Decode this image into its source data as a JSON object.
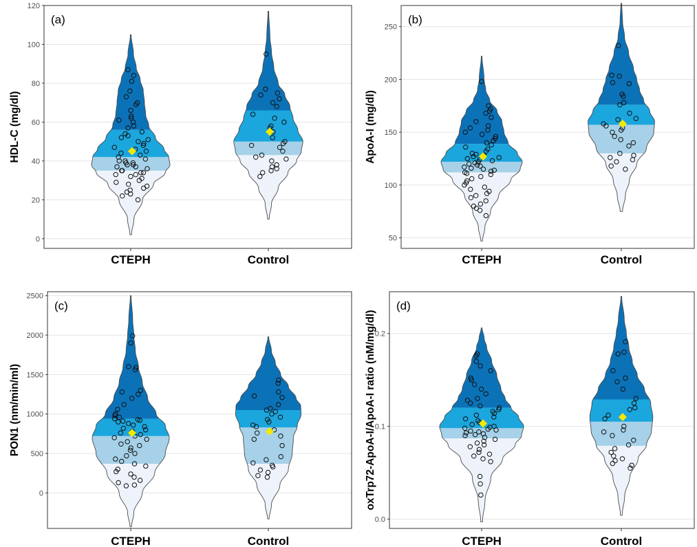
{
  "chart_data": [
    {
      "type": "violin",
      "panel_label": "(a)",
      "ylabel": "HDL-C (mg/dl)",
      "categories": [
        "CTEPH",
        "Control"
      ],
      "ylim": [
        -5,
        120
      ],
      "yticks": [
        0,
        20,
        40,
        60,
        80,
        100,
        120
      ],
      "colors": {
        "q1": "#eef3fb",
        "q2": "#a6d1e8",
        "q3": "#1ba6de",
        "q4": "#0b72b8"
      },
      "mean_color": "#f4e800",
      "groups": [
        {
          "name": "CTEPH",
          "range": [
            2,
            105
          ],
          "quartiles": [
            35,
            42,
            56
          ],
          "mean": 45,
          "density": [
            [
              2,
              0.02
            ],
            [
              10,
              0.08
            ],
            [
              20,
              0.3
            ],
            [
              28,
              0.58
            ],
            [
              34,
              0.88
            ],
            [
              38,
              1.0
            ],
            [
              42,
              0.97
            ],
            [
              46,
              0.85
            ],
            [
              52,
              0.63
            ],
            [
              58,
              0.46
            ],
            [
              64,
              0.38
            ],
            [
              70,
              0.35
            ],
            [
              76,
              0.32
            ],
            [
              82,
              0.24
            ],
            [
              88,
              0.14
            ],
            [
              95,
              0.07
            ],
            [
              105,
              0.01
            ]
          ],
          "points": [
            87,
            84,
            81,
            76,
            73,
            70,
            69,
            66,
            63,
            62,
            61,
            60,
            58,
            57,
            55,
            54,
            53,
            52,
            51,
            50,
            49,
            48,
            47,
            46,
            45,
            44,
            43,
            42,
            41,
            40,
            40,
            39,
            39,
            38,
            38,
            37,
            37,
            36,
            35,
            35,
            34,
            34,
            33,
            33,
            32,
            31,
            30,
            29,
            28,
            27,
            26,
            25,
            24,
            23,
            22,
            20
          ]
        },
        {
          "name": "Control",
          "range": [
            10,
            117
          ],
          "quartiles": [
            43,
            50,
            66
          ],
          "mean": 55,
          "density": [
            [
              10,
              0.02
            ],
            [
              18,
              0.08
            ],
            [
              26,
              0.25
            ],
            [
              34,
              0.5
            ],
            [
              40,
              0.72
            ],
            [
              45,
              0.84
            ],
            [
              50,
              0.88
            ],
            [
              56,
              0.75
            ],
            [
              62,
              0.63
            ],
            [
              68,
              0.55
            ],
            [
              74,
              0.42
            ],
            [
              80,
              0.25
            ],
            [
              88,
              0.14
            ],
            [
              96,
              0.08
            ],
            [
              104,
              0.04
            ],
            [
              117,
              0.01
            ]
          ],
          "points": [
            95,
            77,
            75,
            74,
            72,
            70,
            68,
            64,
            62,
            60,
            58,
            57,
            55,
            52,
            50,
            49,
            48,
            47,
            45,
            43,
            42,
            41,
            40,
            38,
            37,
            36,
            35,
            34,
            32
          ]
        }
      ]
    },
    {
      "type": "violin",
      "panel_label": "(b)",
      "ylabel": "ApoA-I (mg/dl)",
      "categories": [
        "CTEPH",
        "Control"
      ],
      "ylim": [
        40,
        270
      ],
      "yticks": [
        50,
        100,
        150,
        200,
        250
      ],
      "colors": {
        "q1": "#eef3fb",
        "q2": "#a6d1e8",
        "q3": "#1ba6de",
        "q4": "#0b72b8"
      },
      "mean_color": "#f4e800",
      "groups": [
        {
          "name": "CTEPH",
          "range": [
            47,
            222
          ],
          "quartiles": [
            112,
            122,
            139
          ],
          "mean": 127,
          "density": [
            [
              47,
              0.02
            ],
            [
              60,
              0.08
            ],
            [
              75,
              0.22
            ],
            [
              90,
              0.42
            ],
            [
              105,
              0.72
            ],
            [
              115,
              0.95
            ],
            [
              122,
              1.0
            ],
            [
              130,
              0.88
            ],
            [
              140,
              0.65
            ],
            [
              150,
              0.55
            ],
            [
              160,
              0.5
            ],
            [
              170,
              0.38
            ],
            [
              180,
              0.2
            ],
            [
              190,
              0.1
            ],
            [
              200,
              0.06
            ],
            [
              222,
              0.01
            ]
          ],
          "points": [
            198,
            175,
            172,
            170,
            168,
            164,
            160,
            156,
            154,
            152,
            150,
            148,
            146,
            144,
            142,
            140,
            138,
            136,
            134,
            132,
            130,
            129,
            128,
            127,
            126,
            125,
            124,
            123,
            122,
            121,
            120,
            119,
            118,
            117,
            116,
            115,
            114,
            113,
            112,
            111,
            110,
            108,
            106,
            104,
            102,
            100,
            98,
            96,
            94,
            92,
            90,
            88,
            85,
            82,
            80,
            78,
            76,
            71
          ]
        },
        {
          "name": "Control",
          "range": [
            75,
            272
          ],
          "quartiles": [
            130,
            157,
            176
          ],
          "mean": 158,
          "density": [
            [
              75,
              0.03
            ],
            [
              90,
              0.1
            ],
            [
              105,
              0.2
            ],
            [
              120,
              0.38
            ],
            [
              135,
              0.62
            ],
            [
              150,
              0.8
            ],
            [
              160,
              0.82
            ],
            [
              170,
              0.7
            ],
            [
              180,
              0.55
            ],
            [
              190,
              0.45
            ],
            [
              200,
              0.38
            ],
            [
              210,
              0.3
            ],
            [
              225,
              0.18
            ],
            [
              240,
              0.08
            ],
            [
              255,
              0.03
            ],
            [
              272,
              0.01
            ]
          ],
          "points": [
            232,
            204,
            203,
            197,
            196,
            186,
            184,
            178,
            176,
            168,
            163,
            162,
            158,
            156,
            154,
            152,
            150,
            146,
            143,
            140,
            137,
            130,
            128,
            126,
            124,
            122,
            118,
            115
          ]
        }
      ]
    },
    {
      "type": "violin",
      "panel_label": "(c)",
      "ylabel": "PON1 (nm/min/ml)",
      "categories": [
        "CTEPH",
        "Control"
      ],
      "ylim": [
        -450,
        2550
      ],
      "yticks": [
        0,
        500,
        1000,
        1500,
        2000,
        2500
      ],
      "colors": {
        "q1": "#eef3fb",
        "q2": "#a6d1e8",
        "q3": "#1ba6de",
        "q4": "#0b72b8"
      },
      "mean_color": "#f4e800",
      "groups": [
        {
          "name": "CTEPH",
          "range": [
            -430,
            2500
          ],
          "quartiles": [
            370,
            720,
            940
          ],
          "mean": 760,
          "density": [
            [
              -430,
              0.02
            ],
            [
              -250,
              0.08
            ],
            [
              0,
              0.3
            ],
            [
              250,
              0.62
            ],
            [
              500,
              0.9
            ],
            [
              700,
              1.0
            ],
            [
              850,
              0.9
            ],
            [
              1000,
              0.66
            ],
            [
              1200,
              0.44
            ],
            [
              1400,
              0.3
            ],
            [
              1600,
              0.2
            ],
            [
              1800,
              0.12
            ],
            [
              2000,
              0.08
            ],
            [
              2200,
              0.05
            ],
            [
              2500,
              0.01
            ]
          ],
          "points": [
            1990,
            1900,
            1600,
            1590,
            1560,
            1300,
            1280,
            1250,
            1200,
            1120,
            1060,
            1000,
            980,
            960,
            940,
            930,
            920,
            910,
            900,
            880,
            860,
            840,
            820,
            800,
            780,
            760,
            740,
            720,
            700,
            680,
            650,
            620,
            600,
            570,
            540,
            500,
            470,
            430,
            400,
            370,
            340,
            300,
            270,
            240,
            200,
            160,
            130,
            100,
            90
          ]
        },
        {
          "name": "Control",
          "range": [
            -330,
            1980
          ],
          "quartiles": [
            370,
            830,
            1050
          ],
          "mean": 780,
          "density": [
            [
              -330,
              0.02
            ],
            [
              -150,
              0.08
            ],
            [
              100,
              0.3
            ],
            [
              300,
              0.52
            ],
            [
              500,
              0.62
            ],
            [
              700,
              0.65
            ],
            [
              850,
              0.75
            ],
            [
              1000,
              0.85
            ],
            [
              1100,
              0.84
            ],
            [
              1200,
              0.72
            ],
            [
              1350,
              0.52
            ],
            [
              1500,
              0.32
            ],
            [
              1650,
              0.18
            ],
            [
              1800,
              0.08
            ],
            [
              1980,
              0.01
            ]
          ],
          "points": [
            1430,
            1390,
            1280,
            1230,
            1210,
            1120,
            1070,
            1050,
            1030,
            1000,
            960,
            930,
            900,
            860,
            840,
            800,
            760,
            720,
            680,
            600,
            460,
            420,
            380,
            350,
            330,
            290,
            260,
            220,
            200
          ]
        }
      ]
    },
    {
      "type": "violin",
      "panel_label": "(d)",
      "ylabel": "oxTrp72-ApoA-I/ApoA-I ratio (nM/mg/dl)",
      "categories": [
        "CTEPH",
        "Control"
      ],
      "ylim": [
        -0.01,
        0.245
      ],
      "yticks": [
        0.0,
        0.1,
        0.2
      ],
      "colors": {
        "q1": "#eef3fb",
        "q2": "#a6d1e8",
        "q3": "#1ba6de",
        "q4": "#0b72b8"
      },
      "mean_color": "#f4e800",
      "groups": [
        {
          "name": "CTEPH",
          "range": [
            -0.003,
            0.206
          ],
          "quartiles": [
            0.087,
            0.098,
            0.12
          ],
          "mean": 0.103,
          "density": [
            [
              -0.003,
              0.02
            ],
            [
              0.02,
              0.08
            ],
            [
              0.045,
              0.22
            ],
            [
              0.065,
              0.5
            ],
            [
              0.08,
              0.8
            ],
            [
              0.09,
              0.95
            ],
            [
              0.1,
              1.0
            ],
            [
              0.11,
              0.88
            ],
            [
              0.12,
              0.7
            ],
            [
              0.13,
              0.56
            ],
            [
              0.14,
              0.46
            ],
            [
              0.155,
              0.36
            ],
            [
              0.17,
              0.24
            ],
            [
              0.185,
              0.12
            ],
            [
              0.195,
              0.06
            ],
            [
              0.206,
              0.01
            ]
          ],
          "points": [
            0.178,
            0.176,
            0.17,
            0.165,
            0.16,
            0.152,
            0.15,
            0.145,
            0.14,
            0.135,
            0.13,
            0.128,
            0.125,
            0.122,
            0.12,
            0.118,
            0.116,
            0.114,
            0.112,
            0.11,
            0.108,
            0.106,
            0.104,
            0.102,
            0.1,
            0.099,
            0.098,
            0.097,
            0.096,
            0.095,
            0.094,
            0.093,
            0.092,
            0.091,
            0.09,
            0.088,
            0.086,
            0.084,
            0.082,
            0.08,
            0.078,
            0.075,
            0.072,
            0.07,
            0.068,
            0.065,
            0.062,
            0.046,
            0.038,
            0.026
          ]
        },
        {
          "name": "Control",
          "range": [
            0.004,
            0.24
          ],
          "quartiles": [
            0.079,
            0.105,
            0.129
          ],
          "mean": 0.11,
          "density": [
            [
              0.004,
              0.02
            ],
            [
              0.025,
              0.08
            ],
            [
              0.045,
              0.2
            ],
            [
              0.065,
              0.4
            ],
            [
              0.08,
              0.6
            ],
            [
              0.095,
              0.72
            ],
            [
              0.11,
              0.75
            ],
            [
              0.125,
              0.7
            ],
            [
              0.14,
              0.55
            ],
            [
              0.155,
              0.38
            ],
            [
              0.17,
              0.26
            ],
            [
              0.185,
              0.18
            ],
            [
              0.2,
              0.12
            ],
            [
              0.215,
              0.07
            ],
            [
              0.24,
              0.01
            ]
          ],
          "points": [
            0.191,
            0.18,
            0.178,
            0.16,
            0.152,
            0.148,
            0.14,
            0.13,
            0.125,
            0.12,
            0.118,
            0.112,
            0.108,
            0.1,
            0.096,
            0.094,
            0.09,
            0.085,
            0.08,
            0.076,
            0.072,
            0.068,
            0.065,
            0.063,
            0.06,
            0.058,
            0.055
          ]
        }
      ]
    }
  ]
}
